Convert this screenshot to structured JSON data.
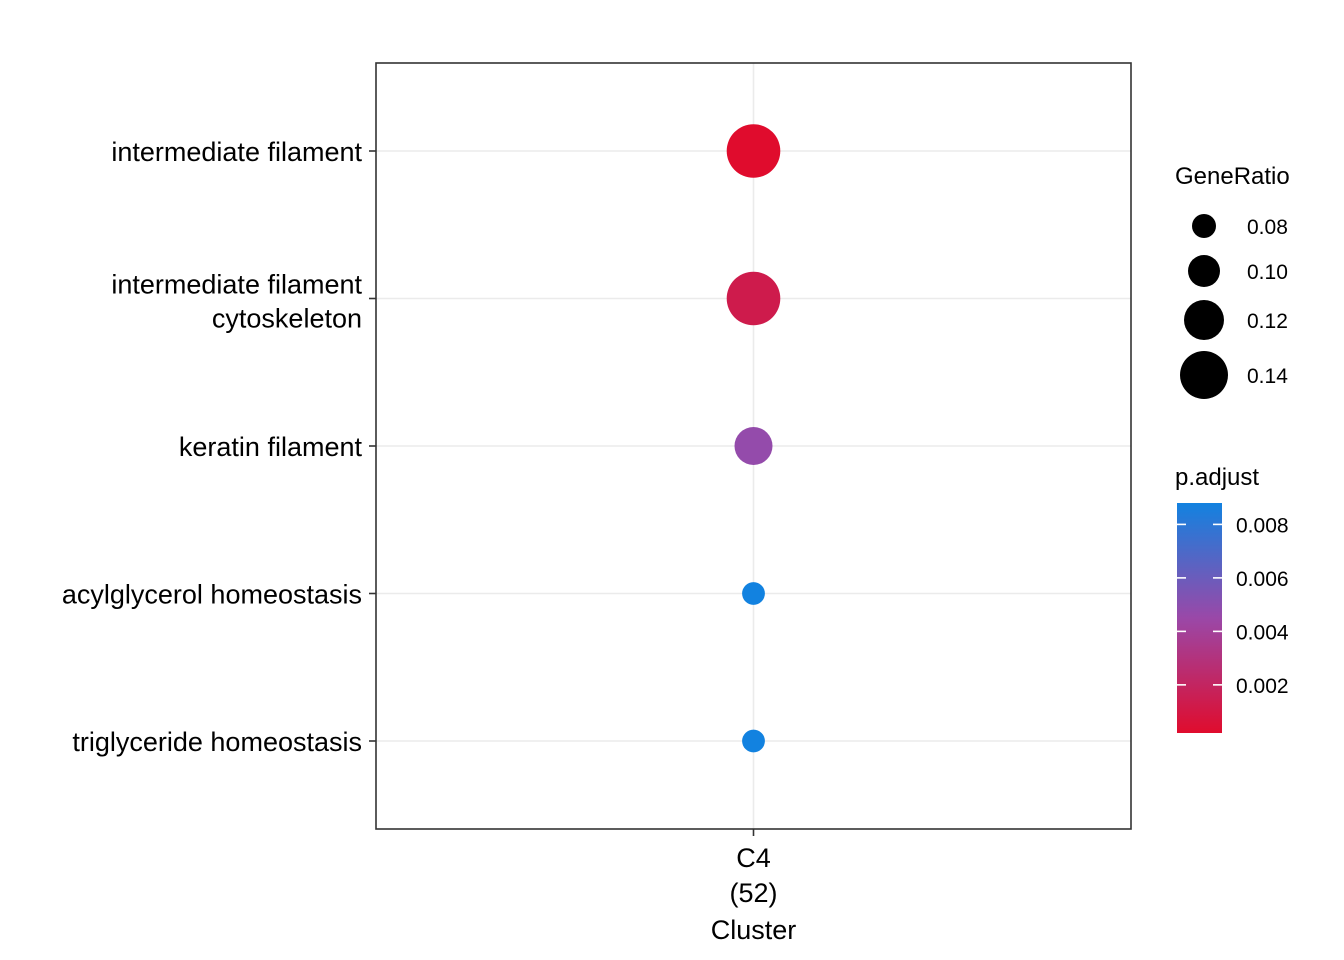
{
  "chart_data": {
    "type": "scatter",
    "x": [
      "C4\n(52)"
    ],
    "xlabel": "Cluster",
    "ylabel": "",
    "categories": [
      "intermediate filament",
      "intermediate filament\ncytoskeleton",
      "keratin filament",
      "acylglycerol homeostasis",
      "triglyceride homeostasis"
    ],
    "points": [
      {
        "x": "C4\n(52)",
        "y": "intermediate filament",
        "GeneRatio": 0.154,
        "p_adjust": 0.0002
      },
      {
        "x": "C4\n(52)",
        "y": "intermediate filament\ncytoskeleton",
        "GeneRatio": 0.154,
        "p_adjust": 0.0013
      },
      {
        "x": "C4\n(52)",
        "y": "keratin filament",
        "GeneRatio": 0.115,
        "p_adjust": 0.0047
      },
      {
        "x": "C4\n(52)",
        "y": "acylglycerol homeostasis",
        "GeneRatio": 0.077,
        "p_adjust": 0.0088
      },
      {
        "x": "C4\n(52)",
        "y": "triglyceride homeostasis",
        "GeneRatio": 0.077,
        "p_adjust": 0.0088
      }
    ],
    "size_legend": {
      "title": "GeneRatio",
      "breaks": [
        0.08,
        0.1,
        0.12,
        0.14
      ],
      "labels": [
        "0.08",
        "0.10",
        "0.12",
        "0.14"
      ]
    },
    "color_legend": {
      "title": "p.adjust",
      "breaks": [
        0.002,
        0.004,
        0.006,
        0.008
      ],
      "labels": [
        "0.002",
        "0.004",
        "0.006",
        "0.008"
      ],
      "range": [
        0.0002,
        0.0088
      ],
      "low_color": "#E00C2D",
      "high_color": "#1282E0"
    },
    "grid": true,
    "legend_position": "right"
  }
}
